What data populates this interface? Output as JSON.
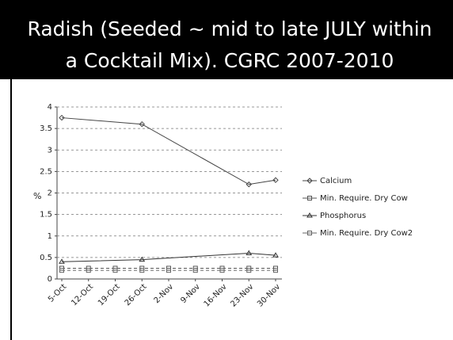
{
  "chart_data": {
    "type": "line",
    "title": [
      "Radish  (Seeded ~ mid to late JULY within",
      "a Cocktail Mix).  CGRC 2007-2010"
    ],
    "y_label": "%",
    "xlim": [
      0,
      56
    ],
    "xticks": [
      {
        "value": 0,
        "label": "5-Oct"
      },
      {
        "value": 7,
        "label": "12-Oct"
      },
      {
        "value": 14,
        "label": "19-Oct"
      },
      {
        "value": 21,
        "label": "26-Oct"
      },
      {
        "value": 28,
        "label": "2-Nov"
      },
      {
        "value": 35,
        "label": "9-Nov"
      },
      {
        "value": 42,
        "label": "16-Nov"
      },
      {
        "value": 49,
        "label": "23-Nov"
      },
      {
        "value": 56,
        "label": "30-Nov"
      }
    ],
    "ylim": [
      0,
      4
    ],
    "yticks": [
      0,
      0.5,
      1,
      1.5,
      2,
      2.5,
      3,
      3.5,
      4
    ],
    "grid": true,
    "legend": "right",
    "series": [
      {
        "name": "Calcium",
        "color": "#444444",
        "marker": "diamond",
        "x": [
          0,
          21,
          49,
          56
        ],
        "values": [
          3.75,
          3.6,
          2.2,
          2.3
        ]
      },
      {
        "name": "Min. Require. Dry Cow",
        "color": "#555555",
        "marker": "square",
        "x": [
          0,
          7,
          14,
          21,
          28,
          35,
          42,
          49,
          56
        ],
        "values": [
          0.25,
          0.25,
          0.25,
          0.25,
          0.25,
          0.25,
          0.25,
          0.25,
          0.25
        ]
      },
      {
        "name": "Phosphorus",
        "color": "#333333",
        "marker": "triangle",
        "x": [
          0,
          21,
          49,
          56
        ],
        "values": [
          0.4,
          0.45,
          0.6,
          0.55
        ]
      },
      {
        "name": "Min. Require. Dry Cow2",
        "color": "#666666",
        "marker": "square",
        "x": [
          0,
          7,
          14,
          21,
          28,
          35,
          42,
          49,
          56
        ],
        "values": [
          0.2,
          0.2,
          0.2,
          0.2,
          0.2,
          0.2,
          0.2,
          0.2,
          0.2
        ]
      }
    ]
  }
}
